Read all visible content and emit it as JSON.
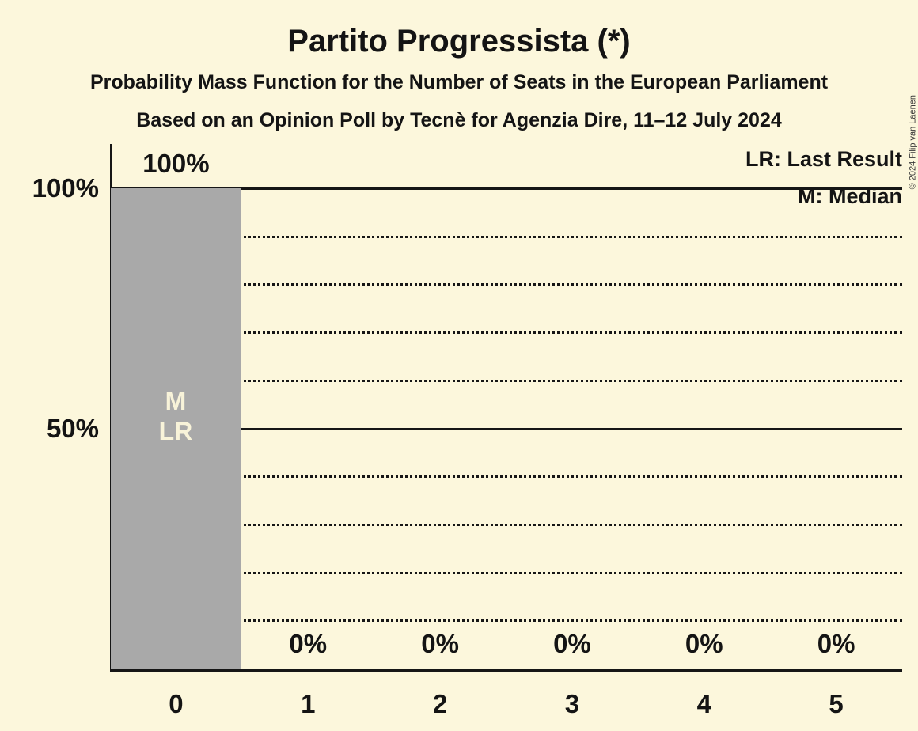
{
  "title": "Partito Progressista (*)",
  "subtitle1": "Probability Mass Function for the Number of Seats in the European Parliament",
  "subtitle2": "Based on an Opinion Poll by Tecnè for Agenzia Dire, 11–12 July 2024",
  "copyright": "© 2024 Filip van Laenen",
  "legend": {
    "lr": "LR: Last Result",
    "m": "M: Median"
  },
  "colors": {
    "background": "#FCF7DC",
    "text": "#141414",
    "line": "#161616",
    "bar": "#A9A9A9",
    "bar_annotation_text": "#F8F3D9"
  },
  "chart_data": {
    "type": "bar",
    "categories": [
      "0",
      "1",
      "2",
      "3",
      "4",
      "5"
    ],
    "values": [
      100,
      0,
      0,
      0,
      0,
      0
    ],
    "bar_labels": [
      "100%",
      "0%",
      "0%",
      "0%",
      "0%",
      "0%"
    ],
    "annotations": [
      {
        "category_index": 0,
        "lines": [
          "M",
          "LR"
        ]
      }
    ],
    "y_ticks": [
      {
        "label": "100%",
        "value": 100
      },
      {
        "label": "50%",
        "value": 50
      }
    ],
    "ylim": [
      0,
      100
    ],
    "solid_gridlines": [
      100,
      50
    ],
    "dotted_gridlines": [
      90,
      80,
      70,
      60,
      40,
      30,
      20,
      10
    ],
    "grid": true,
    "legend_position": "top-right",
    "title": "Partito Progressista (*)"
  }
}
